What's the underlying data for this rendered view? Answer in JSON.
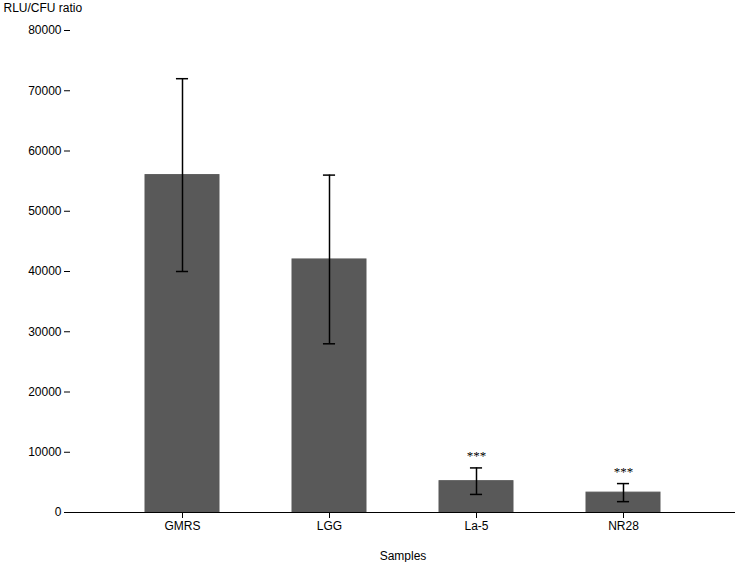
{
  "chart_data": {
    "type": "bar",
    "categories": [
      "GMRS",
      "LGG",
      "La-5",
      "NR28"
    ],
    "values": [
      56000,
      42000,
      5200,
      3300
    ],
    "errors": [
      16000,
      14000,
      2200,
      1500
    ],
    "color": "#595959",
    "error_color": "#000000",
    "annotations": [
      {
        "category": "La-5",
        "text": "***"
      },
      {
        "category": "NR28",
        "text": "***"
      }
    ],
    "xlabel": "Samples",
    "ylabel": "RLU/CFU ratio",
    "ylim": [
      0,
      80000
    ],
    "yticks": [
      0,
      10000,
      20000,
      30000,
      40000,
      50000,
      60000,
      70000,
      80000
    ],
    "grid": false
  }
}
